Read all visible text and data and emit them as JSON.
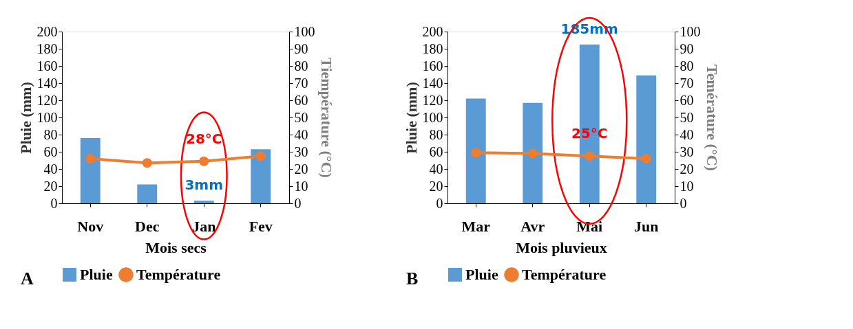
{
  "chart_data": [
    {
      "type": "bar",
      "categories": [
        "Nov",
        "Dec",
        "Jan",
        "Fev"
      ],
      "xlabel": "Mois secs",
      "ylabel": "Pluie (mm)",
      "y2label": "Tiempérature (°C)",
      "series": [
        {
          "name": "Pluie",
          "type": "bar",
          "color": "#5b9bd5",
          "values": [
            76,
            22,
            3,
            63
          ]
        },
        {
          "name": "Température",
          "type": "line",
          "axis": "y2",
          "color": "#ed7d31",
          "values": [
            26,
            23.5,
            24.5,
            27.5
          ]
        }
      ],
      "ylim": [
        0,
        200
      ],
      "yticks": [
        0,
        20,
        40,
        60,
        80,
        100,
        120,
        140,
        160,
        180,
        200
      ],
      "y2lim": [
        0,
        100
      ],
      "y2ticks": [
        0,
        10,
        20,
        30,
        40,
        50,
        60,
        70,
        80,
        90,
        100
      ],
      "marker": "circle",
      "legend": "bottom",
      "grid": false,
      "annotations": [
        {
          "text": "3mm",
          "x": "Jan",
          "y": 3
        },
        {
          "text": "28°C",
          "x": "Jan",
          "y": 49
        },
        "A"
      ]
    },
    {
      "type": "bar",
      "categories": [
        "Mar",
        "Avr",
        "Mai",
        "Jun"
      ],
      "xlabel": "Mois pluvieux",
      "ylabel": "Pluie (mm)",
      "y2label": "Temérature (°C)",
      "series": [
        {
          "name": "Pluie",
          "type": "bar",
          "color": "#5b9bd5",
          "values": [
            122,
            117,
            185,
            149
          ]
        },
        {
          "name": "Température",
          "type": "line",
          "axis": "y2",
          "color": "#ed7d31",
          "values": [
            29.5,
            29,
            27.5,
            26
          ]
        }
      ],
      "ylim": [
        0,
        200
      ],
      "yticks": [
        0,
        20,
        40,
        60,
        80,
        100,
        120,
        140,
        160,
        180,
        200
      ],
      "y2lim": [
        0,
        100
      ],
      "y2ticks": [
        0,
        10,
        20,
        30,
        40,
        50,
        60,
        70,
        80,
        90,
        100
      ],
      "marker": "circle",
      "legend": "bottom",
      "grid": false,
      "annotations": [
        {
          "text": "185mm",
          "x": "Mai",
          "y": 185
        },
        {
          "text": "25°C",
          "x": "Mai",
          "y": 55
        },
        "B"
      ]
    }
  ]
}
